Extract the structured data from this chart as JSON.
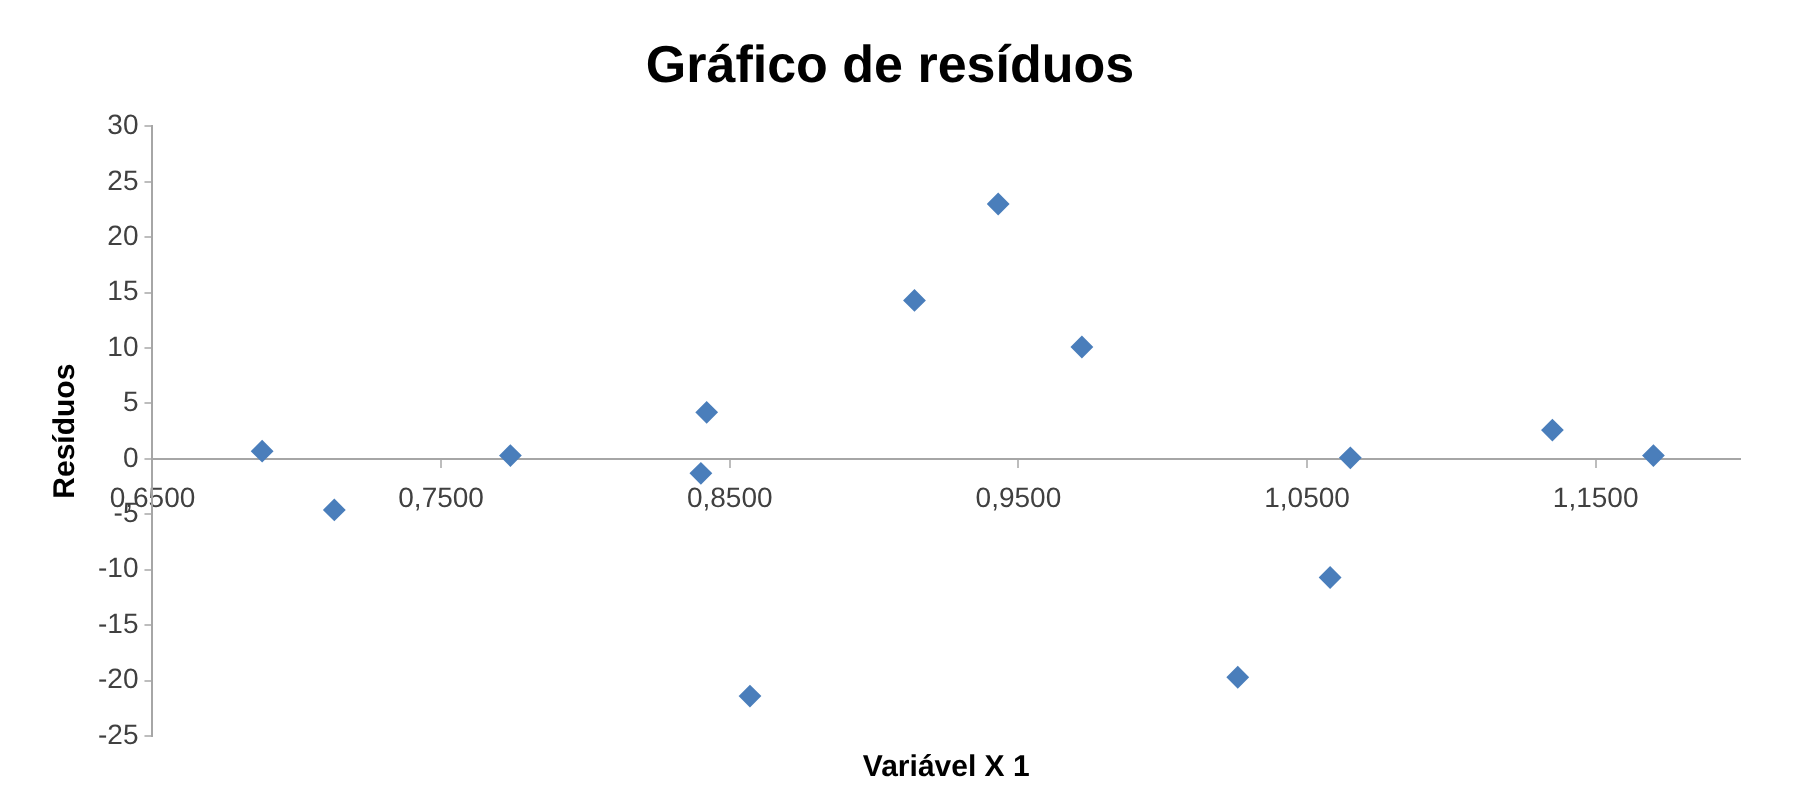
{
  "chart_data": {
    "type": "scatter",
    "title": "Gráfico de resíduos",
    "xlabel": "Variável X 1",
    "ylabel": "Resíduos",
    "x": [
      0.688,
      0.713,
      0.774,
      0.842,
      0.84,
      0.857,
      0.914,
      0.943,
      0.972,
      1.026,
      1.058,
      1.065,
      1.135,
      1.17
    ],
    "values": [
      0.7,
      -4.6,
      0.3,
      4.2,
      -1.3,
      -21.4,
      14.3,
      23.0,
      10.1,
      -19.7,
      -10.7,
      0.1,
      2.6,
      0.3
    ],
    "color": "#4a7ebb",
    "marker": "diamond",
    "xlim": [
      0.65,
      1.2
    ],
    "xticks": [
      {
        "value": 0.65,
        "label": "0,6500"
      },
      {
        "value": 0.75,
        "label": "0,7500"
      },
      {
        "value": 0.85,
        "label": "0,8500"
      },
      {
        "value": 0.95,
        "label": "0,9500"
      },
      {
        "value": 1.05,
        "label": "1,0500"
      },
      {
        "value": 1.15,
        "label": "1,1500"
      }
    ],
    "ylim": [
      -25,
      30
    ],
    "yticks": [
      -25,
      -20,
      -15,
      -10,
      -5,
      0,
      5,
      10,
      15,
      20,
      25,
      30
    ],
    "grid": false,
    "legend": false
  }
}
